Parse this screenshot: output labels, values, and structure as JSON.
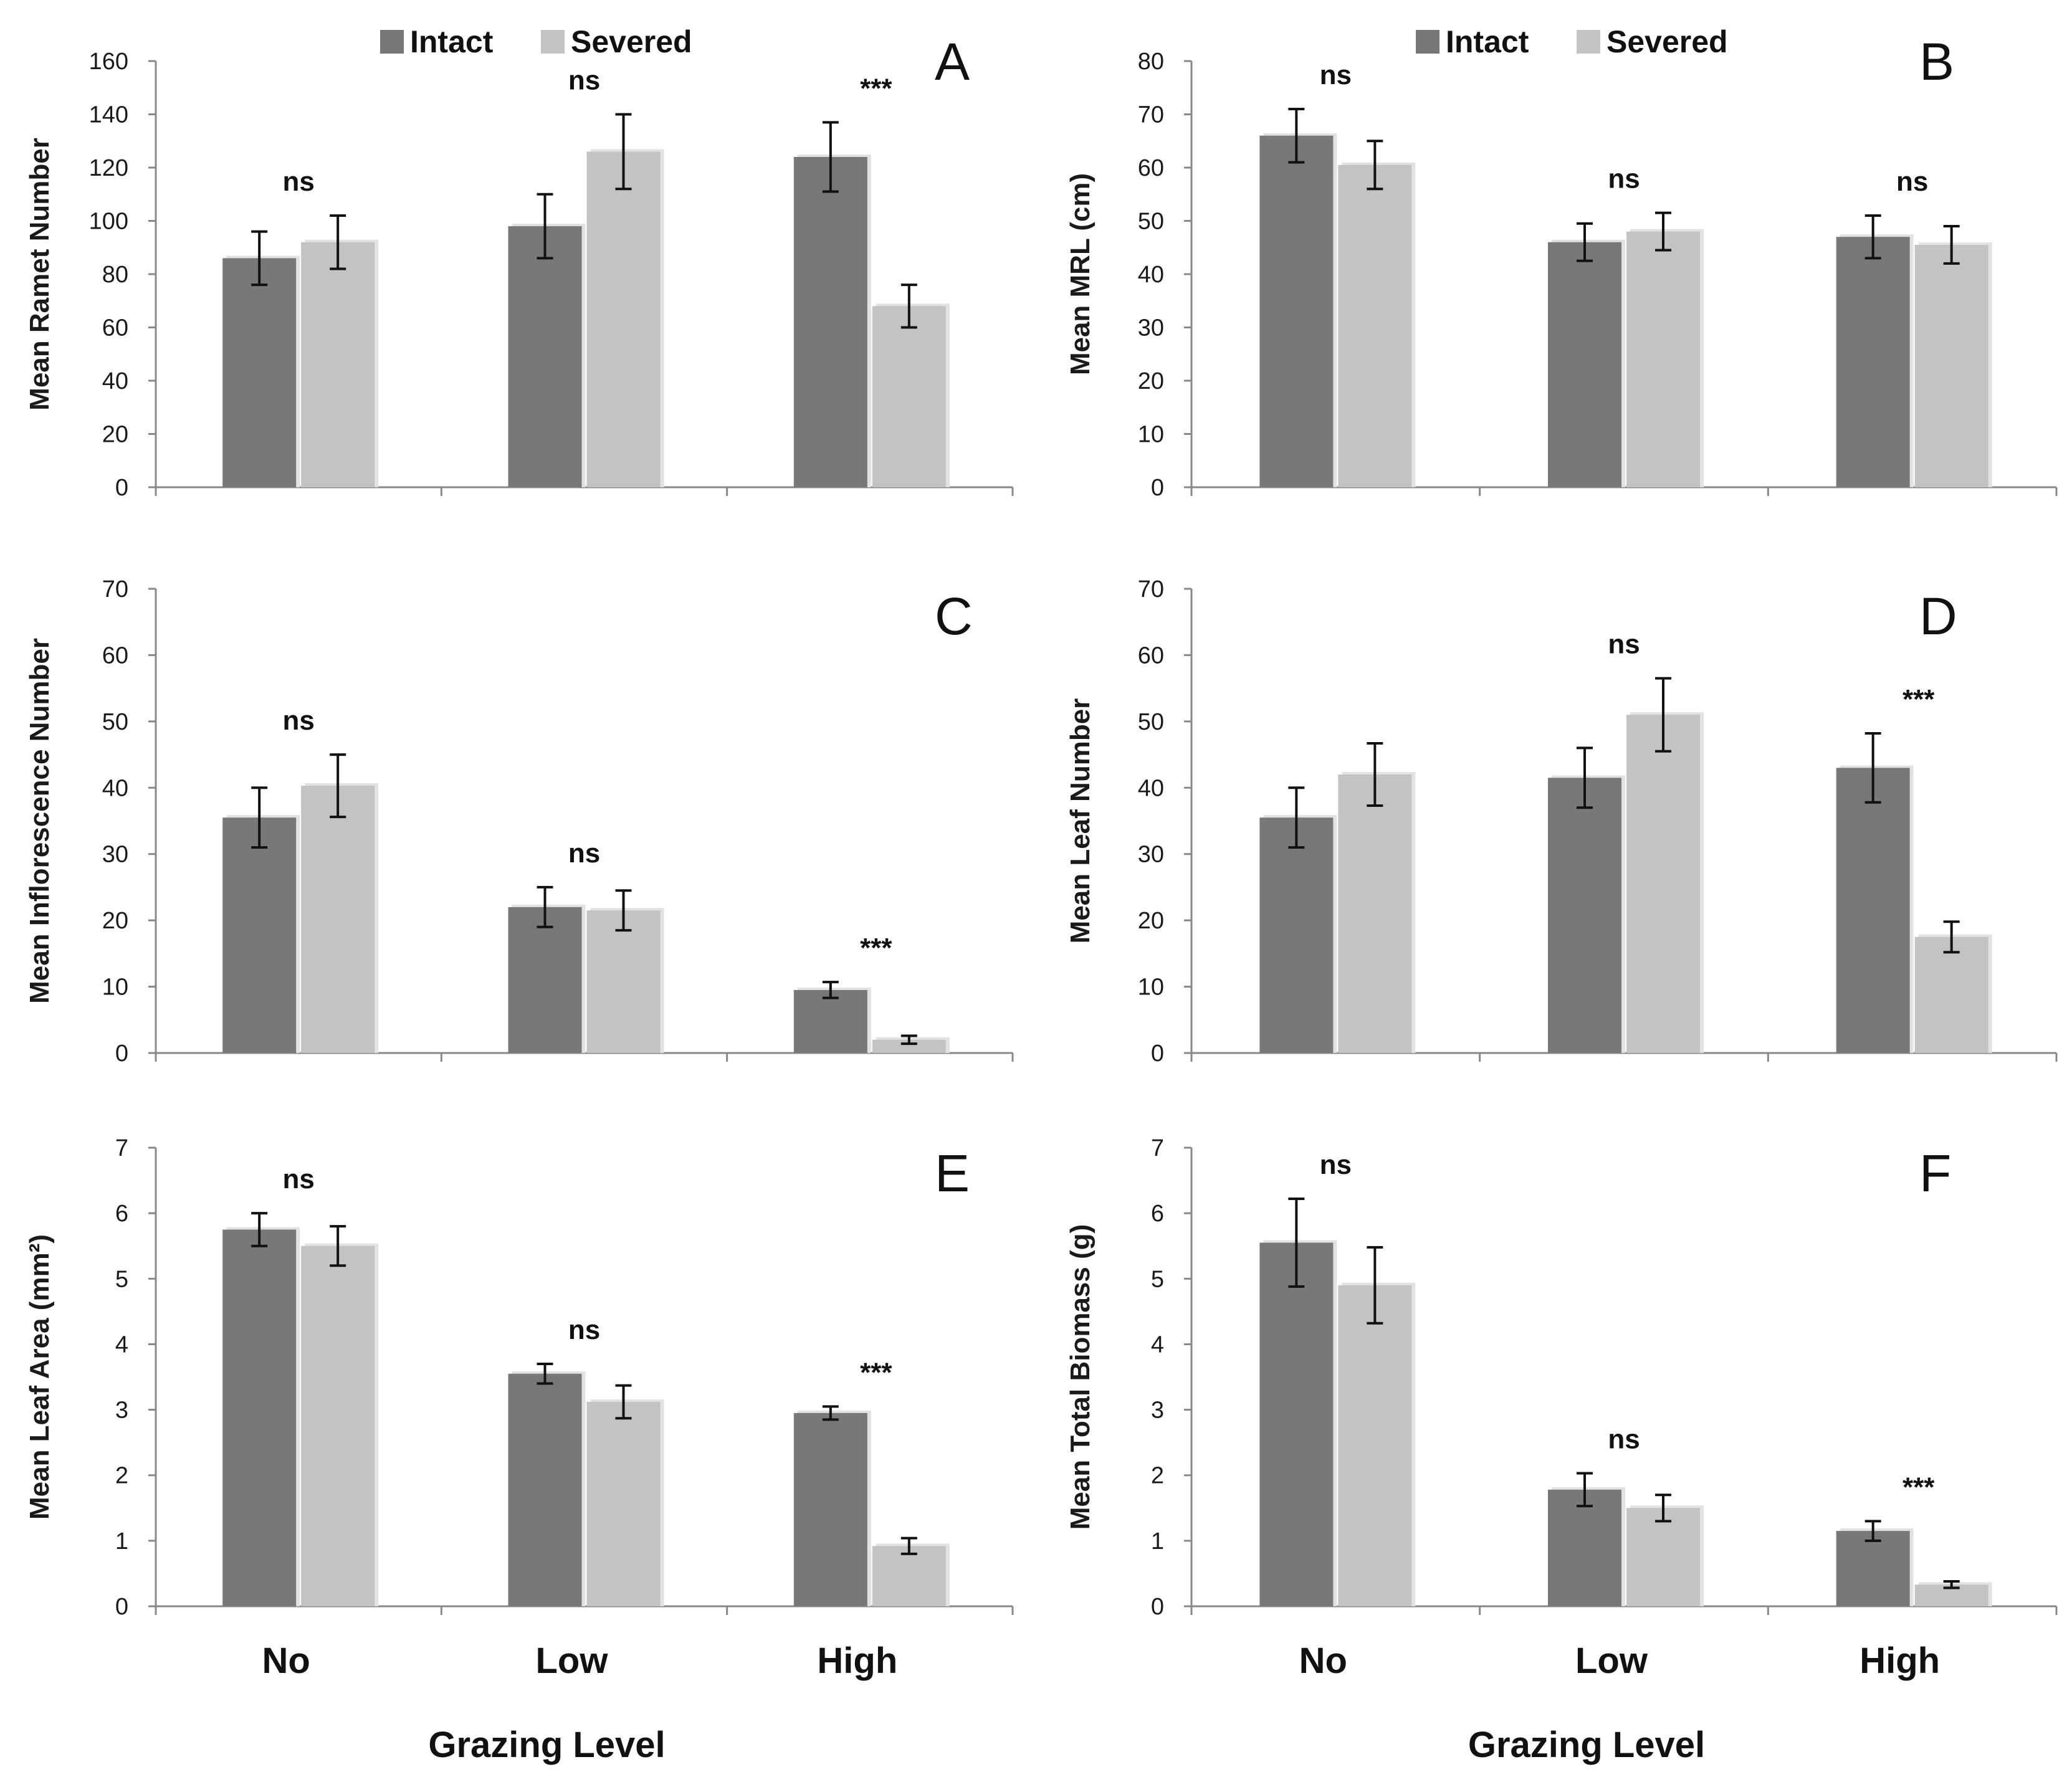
{
  "legend": {
    "intact": "Intact",
    "severed": "Severed"
  },
  "colors": {
    "intact": "#787878",
    "severed": "#c3c3c3",
    "shadow": "#e2e2e2"
  },
  "chart_data": [
    {
      "type": "bar",
      "panel": "A",
      "ylabel": "Mean Ramet Number",
      "ylim": [
        0,
        160
      ],
      "yticks": [
        "0",
        "20",
        "40",
        "60",
        "80",
        "100",
        "120",
        "140",
        "160"
      ],
      "categories": [
        "No",
        "Low",
        "High"
      ],
      "series": [
        {
          "name": "Intact",
          "values": [
            86,
            98,
            124
          ],
          "errors": [
            10,
            12,
            13
          ]
        },
        {
          "name": "Severed",
          "values": [
            92,
            126,
            68
          ],
          "errors": [
            10,
            14,
            8
          ]
        }
      ],
      "significance": [
        "ns",
        "ns",
        "***"
      ]
    },
    {
      "type": "bar",
      "panel": "B",
      "ylabel": "Mean MRL (cm)",
      "ylim": [
        0,
        80
      ],
      "yticks": [
        "0",
        "10",
        "20",
        "30",
        "40",
        "50",
        "60",
        "70",
        "80"
      ],
      "categories": [
        "No",
        "Low",
        "High"
      ],
      "series": [
        {
          "name": "Intact",
          "values": [
            66,
            46,
            47
          ],
          "errors": [
            5,
            3.5,
            4
          ]
        },
        {
          "name": "Severed",
          "values": [
            60.5,
            48,
            45.5
          ],
          "errors": [
            4.5,
            3.5,
            3.5
          ]
        }
      ],
      "significance": [
        "ns",
        "ns",
        "ns"
      ]
    },
    {
      "type": "bar",
      "panel": "C",
      "ylabel": "Mean Inflorescence Number",
      "ylim": [
        0,
        70
      ],
      "yticks": [
        "0",
        "10",
        "20",
        "30",
        "40",
        "50",
        "60",
        "70"
      ],
      "categories": [
        "No",
        "Low",
        "High"
      ],
      "series": [
        {
          "name": "Intact",
          "values": [
            35.5,
            22,
            9.5
          ],
          "errors": [
            4.5,
            3,
            1.2
          ]
        },
        {
          "name": "Severed",
          "values": [
            40.3,
            21.5,
            2
          ],
          "errors": [
            4.7,
            3,
            0.6
          ]
        }
      ],
      "significance": [
        "ns",
        "ns",
        "***"
      ]
    },
    {
      "type": "bar",
      "panel": "D",
      "ylabel": "Mean Leaf Number",
      "ylim": [
        0,
        70
      ],
      "yticks": [
        "0",
        "10",
        "20",
        "30",
        "40",
        "50",
        "60",
        "70"
      ],
      "categories": [
        "No",
        "Low",
        "High"
      ],
      "series": [
        {
          "name": "Intact",
          "values": [
            35.5,
            41.5,
            43
          ],
          "errors": [
            4.5,
            4.5,
            5.2
          ]
        },
        {
          "name": "Severed",
          "values": [
            42,
            51,
            17.5
          ],
          "errors": [
            4.7,
            5.5,
            2.3
          ]
        }
      ],
      "significance": [
        "",
        "ns",
        "***"
      ]
    },
    {
      "type": "bar",
      "panel": "E",
      "ylabel": "Mean Leaf Area (mm²)",
      "ylim": [
        0,
        7
      ],
      "yticks": [
        "0",
        "1",
        "2",
        "3",
        "4",
        "5",
        "6",
        "7"
      ],
      "categories": [
        "No",
        "Low",
        "High"
      ],
      "series": [
        {
          "name": "Intact",
          "values": [
            5.75,
            3.55,
            2.95
          ],
          "errors": [
            0.25,
            0.15,
            0.1
          ]
        },
        {
          "name": "Severed",
          "values": [
            5.5,
            3.12,
            0.92
          ],
          "errors": [
            0.3,
            0.25,
            0.12
          ]
        }
      ],
      "significance": [
        "ns",
        "ns",
        "***"
      ]
    },
    {
      "type": "bar",
      "panel": "F",
      "ylabel": "Mean Total Biomass (g)",
      "ylim": [
        0,
        7
      ],
      "yticks": [
        "0",
        "1",
        "2",
        "3",
        "4",
        "5",
        "6",
        "7"
      ],
      "categories": [
        "No",
        "Low",
        "High"
      ],
      "series": [
        {
          "name": "Intact",
          "values": [
            5.55,
            1.78,
            1.15
          ],
          "errors": [
            0.67,
            0.25,
            0.15
          ]
        },
        {
          "name": "Severed",
          "values": [
            4.9,
            1.5,
            0.33
          ],
          "errors": [
            0.58,
            0.2,
            0.05
          ]
        }
      ],
      "significance": [
        "ns",
        "ns",
        "***"
      ]
    }
  ],
  "xaxis": {
    "title": "Grazing Level",
    "categories": [
      "No",
      "Low",
      "High"
    ]
  }
}
